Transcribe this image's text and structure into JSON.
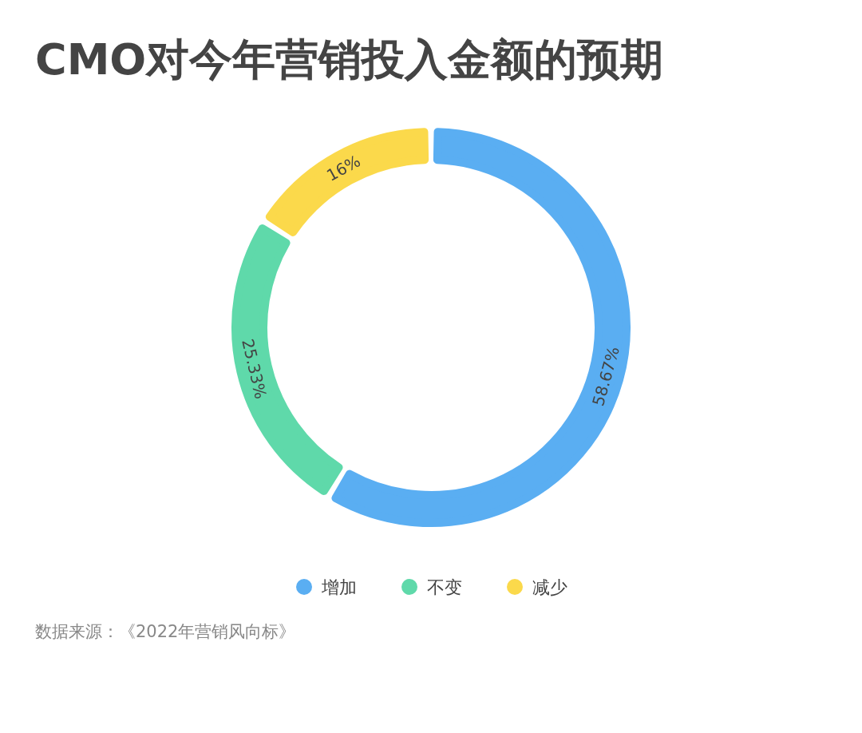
{
  "chart_data": {
    "type": "donut",
    "title": "CMO对今年营销投入金额的预期",
    "categories": [
      "增加",
      "不变",
      "减少"
    ],
    "values": [
      58.67,
      25.33,
      16
    ],
    "value_labels": [
      "58.67%",
      "25.33%",
      "16%"
    ],
    "colors": [
      "#5aaef2",
      "#5fd9aa",
      "#fbd94b"
    ],
    "legend": "bottom",
    "annotations": [
      "数据来源：《2022年营销风向标》"
    ]
  }
}
